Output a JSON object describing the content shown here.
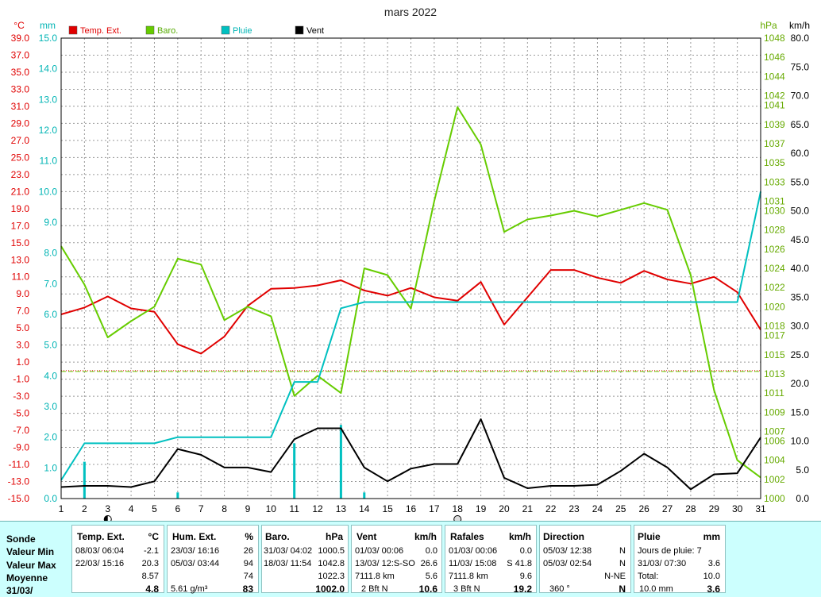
{
  "chart_data": {
    "type": "line",
    "title": "mars 2022",
    "x": [
      1,
      2,
      3,
      4,
      5,
      6,
      7,
      8,
      9,
      10,
      11,
      12,
      13,
      14,
      15,
      16,
      17,
      18,
      19,
      20,
      21,
      22,
      23,
      24,
      25,
      26,
      27,
      28,
      29,
      30,
      31
    ],
    "x_ticks": [
      "1",
      "2",
      "3",
      "4",
      "5",
      "6",
      "7",
      "8",
      "9",
      "10",
      "11",
      "12",
      "13",
      "14",
      "15",
      "16",
      "17",
      "18",
      "19",
      "20",
      "21",
      "22",
      "23",
      "24",
      "25",
      "26",
      "27",
      "28",
      "29",
      "30",
      "31"
    ],
    "axes": {
      "temp": {
        "unit": "°C",
        "min": -15,
        "max": 39,
        "ticks": [
          "39.0",
          "37.0",
          "35.0",
          "33.0",
          "31.0",
          "29.0",
          "27.0",
          "25.0",
          "23.0",
          "21.0",
          "19.0",
          "17.0",
          "15.0",
          "13.0",
          "11.0",
          "9.0",
          "7.0",
          "5.0",
          "3.0",
          "1.0",
          "-1.0",
          "-3.0",
          "-5.0",
          "-7.0",
          "-9.0",
          "-11.0",
          "-13.0",
          "-15.0"
        ]
      },
      "rain": {
        "unit": "mm",
        "min": 0,
        "max": 15,
        "ticks": [
          "15.0",
          "14.0",
          "13.0",
          "12.0",
          "11.0",
          "10.0",
          "9.0",
          "8.0",
          "7.0",
          "6.0",
          "5.0",
          "4.0",
          "3.0",
          "2.0",
          "1.0",
          "0.0"
        ]
      },
      "baro": {
        "unit": "hPa",
        "min": 1000,
        "max": 1048,
        "ticks": [
          "1048",
          "1046",
          "1044",
          "1042",
          "1041",
          "1039",
          "1037",
          "1035",
          "1033",
          "1031",
          "1030",
          "1028",
          "1026",
          "1024",
          "1022",
          "1020",
          "1018",
          "1017",
          "1015",
          "1013",
          "1011",
          "1009",
          "1007",
          "1006",
          "1004",
          "1002",
          "1000"
        ]
      },
      "wind": {
        "unit": "km/h",
        "min": 0,
        "max": 80,
        "ticks": [
          "80.0",
          "75.0",
          "70.0",
          "65.0",
          "60.0",
          "55.0",
          "50.0",
          "45.0",
          "40.0",
          "35.0",
          "30.0",
          "25.0",
          "20.0",
          "15.0",
          "10.0",
          "5.0",
          "0.0"
        ]
      }
    },
    "series": [
      {
        "name": "Temp. Ext.",
        "axis": "temp",
        "color": "#e00000",
        "values": [
          6.6,
          7.4,
          8.7,
          7.3,
          6.9,
          3.1,
          2.0,
          4.0,
          7.6,
          9.6,
          9.7,
          10.0,
          10.6,
          9.4,
          8.8,
          9.7,
          8.6,
          8.2,
          10.4,
          5.4,
          8.6,
          11.8,
          11.8,
          10.9,
          10.3,
          11.7,
          10.7,
          10.2,
          11.0,
          9.2,
          4.8
        ]
      },
      {
        "name": "Baro.",
        "axis": "baro",
        "color": "#66cc00",
        "values": [
          1026.3,
          1022.3,
          1016.8,
          1018.5,
          1020.0,
          1025.0,
          1024.4,
          1018.6,
          1020.0,
          1019.0,
          1010.7,
          1012.8,
          1011.0,
          1024.0,
          1023.3,
          1019.8,
          1031.0,
          1040.8,
          1036.9,
          1027.8,
          1029.1,
          1029.5,
          1030.0,
          1029.4,
          1030.1,
          1030.8,
          1030.1,
          1023.3,
          1011.3,
          1004.0,
          1002.2
        ]
      },
      {
        "name": "Pluie",
        "axis": "rain",
        "color": "#00c0c0",
        "values": [
          0.6,
          1.8,
          1.8,
          1.8,
          1.8,
          2.0,
          2.0,
          2.0,
          2.0,
          2.0,
          3.8,
          3.8,
          6.2,
          6.4,
          6.4,
          6.4,
          6.4,
          6.4,
          6.4,
          6.4,
          6.4,
          6.4,
          6.4,
          6.4,
          6.4,
          6.4,
          6.4,
          6.4,
          6.4,
          6.4,
          10.0
        ]
      },
      {
        "name": "Vent",
        "axis": "wind",
        "color": "#000000",
        "values": [
          2.0,
          2.2,
          2.2,
          2.0,
          3.0,
          8.6,
          7.6,
          5.4,
          5.4,
          4.6,
          10.3,
          12.2,
          12.2,
          5.4,
          3.0,
          5.2,
          6.0,
          6.0,
          13.8,
          3.6,
          1.8,
          2.2,
          2.2,
          2.4,
          4.8,
          7.8,
          5.4,
          1.6,
          4.2,
          4.4,
          10.6
        ]
      }
    ],
    "rain_bars": {
      "axis": "rain",
      "color": "#00c0c0",
      "days": [
        2,
        6,
        11,
        13,
        14
      ],
      "values": [
        1.2,
        0.2,
        1.8,
        2.4,
        0.2
      ]
    },
    "reference_lines": [
      {
        "axis": "baro",
        "value": 1013.25,
        "color": "#66cc00",
        "style": "dashed"
      },
      {
        "axis": "temp",
        "value": 0,
        "color": "#e00000",
        "style": "dotted"
      }
    ],
    "moon_markers": [
      {
        "day": 3,
        "type": "first-quarter"
      },
      {
        "day": 18,
        "type": "full"
      }
    ],
    "grid": true,
    "legend_position": "top"
  },
  "stats": {
    "row_labels": [
      "Sonde",
      "Valeur Min",
      "Valeur Max",
      "Moyenne",
      "31/03/"
    ],
    "temp": {
      "title": "Temp. Ext.",
      "unit": "°C",
      "min_date": "08/03/  06:04",
      "min": "-2.1",
      "max_date": "22/03/  15:16",
      "max": "20.3",
      "mean": "8.57",
      "current": "4.8"
    },
    "hum": {
      "title": "Hum. Ext.",
      "unit": "%",
      "min_date": "23/03/  16:16",
      "min": "26",
      "max_date": "05/03/  03:44",
      "max": "94",
      "mean": "74",
      "abs": "5.61 g/m³",
      "current": "83"
    },
    "baro": {
      "title": "Baro.",
      "unit": "hPa",
      "min_date": "31/03/  04:02",
      "min": "1000.5",
      "max_date": "18/03/  11:54",
      "max": "1042.8",
      "mean": "1022.3",
      "current": "1002.0"
    },
    "vent": {
      "title": "Vent",
      "unit": "km/h",
      "min_date": "01/03/  00:06",
      "min": "0.0",
      "max_date": "13/03/  12:S-SO",
      "max": "26.6",
      "km": "7111.8 km",
      "mean": "5.6",
      "bft": "2 Bft N",
      "current": "10.6"
    },
    "raf": {
      "title": "Rafales",
      "unit": "km/h",
      "min_date": "01/03/  00:06",
      "min": "0.0",
      "max_date": "11/03/  15:08",
      "max": "S 41.8",
      "km": "7111.8 km",
      "mean": "9.6",
      "bft": "3 Bft N",
      "current": "19.2"
    },
    "dir": {
      "title": "Direction",
      "min_date": "05/03/  12:38",
      "min": "N",
      "max_date": "05/03/  02:54",
      "max": "N",
      "mean": "N-NE",
      "deg": "360 °",
      "current": "N"
    },
    "pluie": {
      "title": "Pluie",
      "unit": "mm",
      "rain_days": "Jours de pluie: 7",
      "max_date": "31/03/  07:30",
      "max": "3.6",
      "total_label": "Total:",
      "total": "10.0",
      "current_total": "10.0 mm",
      "current": "3.6"
    }
  }
}
